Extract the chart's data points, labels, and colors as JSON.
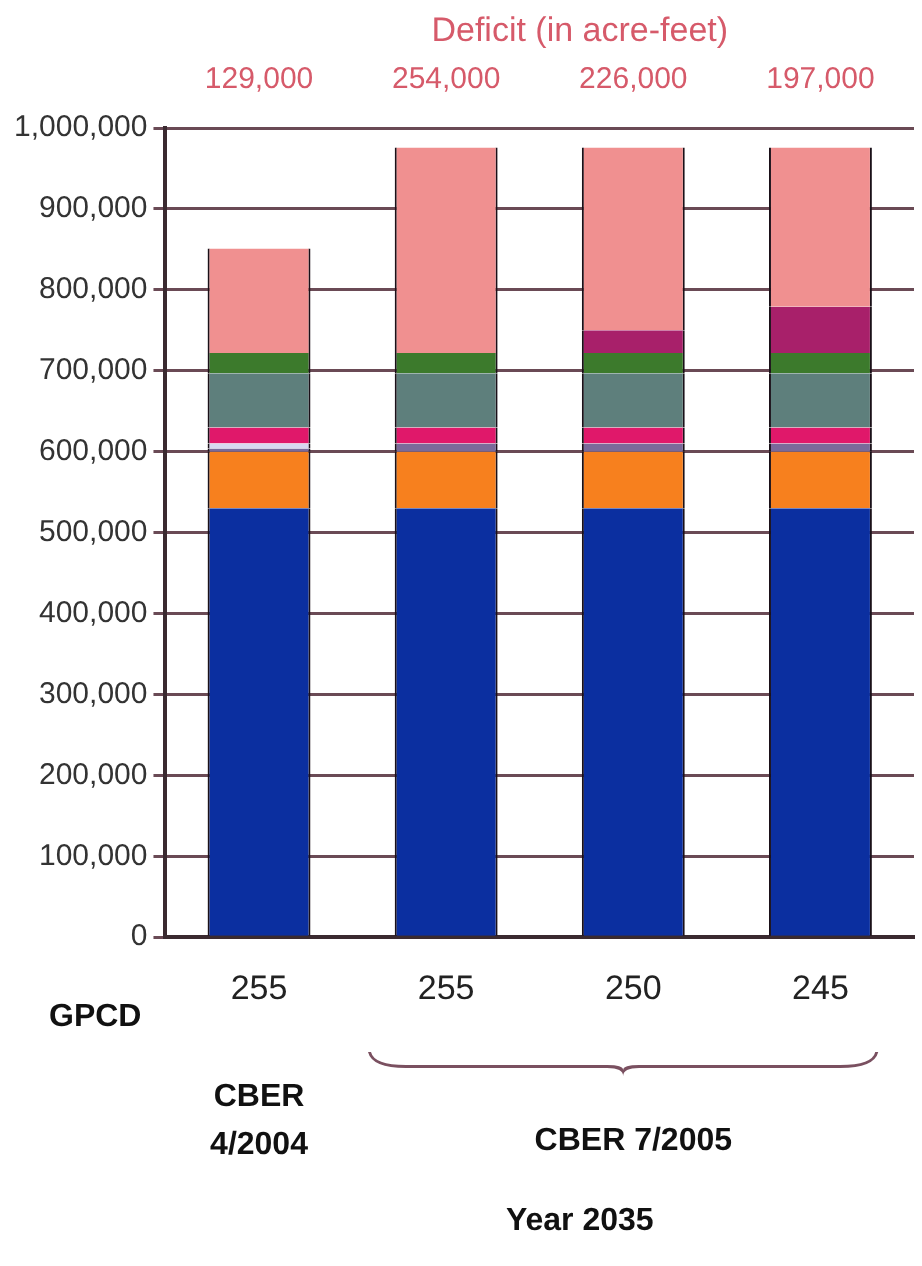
{
  "chart_data": {
    "type": "bar",
    "stacked": true,
    "title": "Deficit (in acre-feet)",
    "categories": [
      "255",
      "255",
      "250",
      "245"
    ],
    "series": [
      {
        "color": "#0b2fa0",
        "values": [
          530000,
          530000,
          530000,
          530000
        ]
      },
      {
        "color": "#f7801e",
        "values": [
          70000,
          70000,
          70000,
          70000
        ]
      },
      {
        "color": "#7a6a9a",
        "values": [
          4000,
          10000,
          10000,
          10000
        ]
      },
      {
        "color": "#d8d8f0",
        "values": [
          6000,
          0,
          0,
          0
        ]
      },
      {
        "color": "#e0186a",
        "values": [
          20000,
          20000,
          20000,
          20000
        ]
      },
      {
        "color": "#5e7f7c",
        "values": [
          67000,
          67000,
          67000,
          67000
        ]
      },
      {
        "color": "#3c7a2c",
        "values": [
          25000,
          25000,
          25000,
          25000
        ]
      },
      {
        "color": "#a8206a",
        "values": [
          0,
          0,
          28000,
          57000
        ]
      },
      {
        "color": "#f09090",
        "values": [
          129000,
          254000,
          226000,
          197000
        ],
        "value_labels": [
          "129,000",
          "254,000",
          "226,000",
          "197,000"
        ]
      }
    ],
    "ylim": [
      0,
      1000000
    ],
    "yticks": [
      0,
      {
        "value": 100000,
        "label": "100,000"
      },
      {
        "value": 200000,
        "label": "200,000"
      },
      {
        "value": 300000,
        "label": "300,000"
      },
      {
        "value": 400000,
        "label": "400,000"
      },
      {
        "value": 500000,
        "label": "500,000"
      },
      {
        "value": 600000,
        "label": "600,000"
      },
      {
        "value": 700000,
        "label": "700,000"
      },
      {
        "value": 800000,
        "label": "800,000"
      },
      {
        "value": 900000,
        "label": "900,000"
      },
      {
        "value": 1000000,
        "label": "1,000,000"
      }
    ],
    "grid": "y",
    "legend": false,
    "annotations": [
      "GPCD",
      "CBER 4/2004",
      "CBER 7/2005",
      "Year 2035"
    ]
  }
}
